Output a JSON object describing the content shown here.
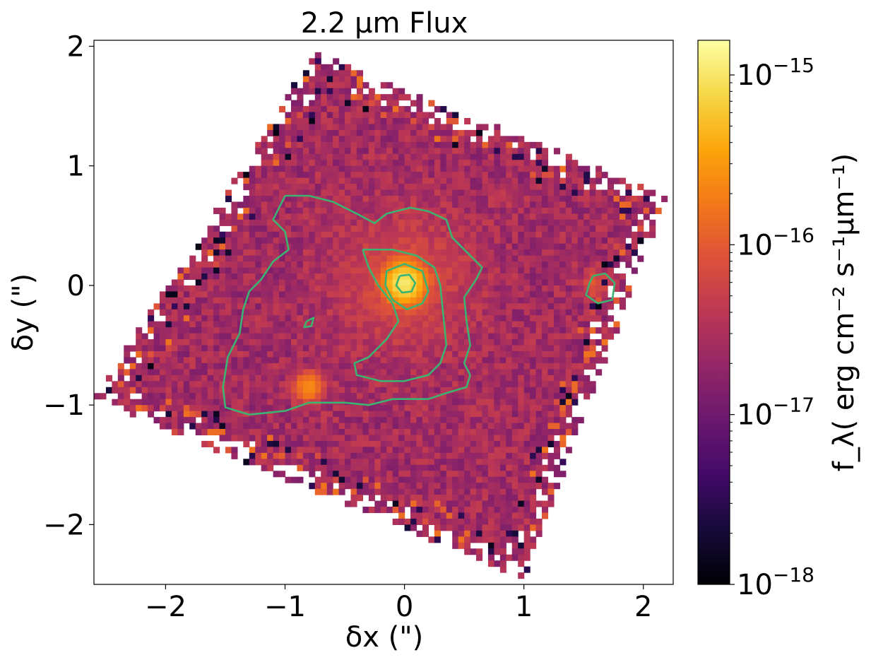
{
  "chart_data": {
    "type": "heatmap",
    "title": "2.2 μm Flux",
    "xlabel": "δx (\")",
    "ylabel": "δy (\")",
    "xlim": [
      -2.6,
      2.25
    ],
    "ylim": [
      -2.5,
      2.05
    ],
    "xticks": [
      {
        "value": -2,
        "label": "−2"
      },
      {
        "value": -1,
        "label": "−1"
      },
      {
        "value": 0,
        "label": "0"
      },
      {
        "value": 1,
        "label": "1"
      },
      {
        "value": 2,
        "label": "2"
      }
    ],
    "yticks": [
      {
        "value": 2,
        "label": "2"
      },
      {
        "value": 1,
        "label": "1"
      },
      {
        "value": 0,
        "label": "0"
      },
      {
        "value": -1,
        "label": "−1"
      },
      {
        "value": -2,
        "label": "−2"
      }
    ],
    "colorbar": {
      "label": "f_λ( erg cm⁻² s⁻¹μm⁻¹)",
      "scale": "log",
      "colormap": "inferno",
      "range": [
        1e-18,
        1.6e-15
      ],
      "ticks": [
        {
          "value": 1e-18,
          "base": "10",
          "exp": "−18"
        },
        {
          "value": 1e-17,
          "base": "10",
          "exp": "−17"
        },
        {
          "value": 1e-16,
          "base": "10",
          "exp": "−16"
        },
        {
          "value": 1e-15,
          "base": "10",
          "exp": "−15"
        }
      ]
    },
    "map": {
      "footprint_corners": [
        [
          -0.75,
          1.95
        ],
        [
          2.2,
          0.75
        ],
        [
          1.0,
          -2.45
        ],
        [
          -2.6,
          -0.95
        ]
      ],
      "background_level": 2.5e-17,
      "pixel_size_arcsec": 0.05,
      "sources": [
        {
          "name": "nucleus",
          "x": 0.0,
          "y": 0.02,
          "peak": 1e-15
        },
        {
          "name": "knot",
          "x": -0.8,
          "y": -0.85,
          "peak": 2.2e-16
        },
        {
          "name": "clump",
          "x": 1.6,
          "y": 0.0,
          "peak": 6e-17
        }
      ]
    },
    "contours": {
      "color": "#3cb371",
      "paths": [
        [
          [
            -1.0,
            0.75
          ],
          [
            -0.8,
            0.75
          ],
          [
            -0.6,
            0.7
          ],
          [
            -0.4,
            0.6
          ],
          [
            -0.25,
            0.52
          ],
          [
            -0.15,
            0.6
          ],
          [
            0.05,
            0.65
          ],
          [
            0.2,
            0.62
          ],
          [
            0.35,
            0.55
          ],
          [
            0.4,
            0.4
          ],
          [
            0.55,
            0.25
          ],
          [
            0.65,
            0.15
          ],
          [
            0.6,
            0.05
          ],
          [
            0.5,
            -0.1
          ],
          [
            0.52,
            -0.3
          ],
          [
            0.55,
            -0.5
          ],
          [
            0.5,
            -0.65
          ],
          [
            0.55,
            -0.75
          ],
          [
            0.52,
            -0.85
          ],
          [
            0.35,
            -0.9
          ],
          [
            0.2,
            -0.95
          ],
          [
            -0.1,
            -0.95
          ],
          [
            -0.3,
            -1.0
          ],
          [
            -0.5,
            -0.98
          ],
          [
            -0.8,
            -0.98
          ],
          [
            -1.0,
            -1.05
          ],
          [
            -1.3,
            -1.08
          ],
          [
            -1.5,
            -1.02
          ],
          [
            -1.52,
            -0.85
          ],
          [
            -1.48,
            -0.6
          ],
          [
            -1.38,
            -0.4
          ],
          [
            -1.35,
            -0.2
          ],
          [
            -1.3,
            -0.05
          ],
          [
            -1.2,
            0.05
          ],
          [
            -1.1,
            0.2
          ],
          [
            -0.97,
            0.3
          ],
          [
            -1.0,
            0.45
          ],
          [
            -1.1,
            0.55
          ],
          [
            -1.05,
            0.65
          ],
          [
            -1.0,
            0.75
          ]
        ],
        [
          [
            -0.35,
            0.3
          ],
          [
            -0.1,
            0.3
          ],
          [
            0.1,
            0.25
          ],
          [
            0.25,
            0.15
          ],
          [
            0.3,
            0.0
          ],
          [
            0.32,
            -0.2
          ],
          [
            0.35,
            -0.5
          ],
          [
            0.3,
            -0.65
          ],
          [
            0.2,
            -0.75
          ],
          [
            0.0,
            -0.8
          ],
          [
            -0.2,
            -0.8
          ],
          [
            -0.4,
            -0.75
          ],
          [
            -0.42,
            -0.65
          ],
          [
            -0.3,
            -0.6
          ],
          [
            -0.15,
            -0.45
          ],
          [
            -0.05,
            -0.3
          ],
          [
            -0.1,
            -0.15
          ],
          [
            -0.22,
            0.0
          ],
          [
            -0.3,
            0.15
          ],
          [
            -0.35,
            0.3
          ]
        ],
        [
          [
            -0.15,
            0.12
          ],
          [
            0.0,
            0.18
          ],
          [
            0.15,
            0.12
          ],
          [
            0.2,
            -0.05
          ],
          [
            0.15,
            -0.15
          ],
          [
            0.02,
            -0.2
          ],
          [
            -0.1,
            -0.12
          ],
          [
            -0.16,
            0.0
          ],
          [
            -0.15,
            0.12
          ]
        ],
        [
          [
            -0.04,
            0.08
          ],
          [
            0.04,
            0.09
          ],
          [
            0.09,
            0.02
          ],
          [
            0.06,
            -0.05
          ],
          [
            -0.02,
            -0.06
          ],
          [
            -0.07,
            0.0
          ],
          [
            -0.04,
            0.08
          ]
        ],
        [
          [
            1.58,
            0.08
          ],
          [
            1.68,
            0.1
          ],
          [
            1.76,
            0.02
          ],
          [
            1.74,
            -0.12
          ],
          [
            1.62,
            -0.15
          ],
          [
            1.52,
            -0.08
          ],
          [
            1.55,
            0.02
          ],
          [
            1.58,
            0.08
          ]
        ],
        [
          [
            -0.82,
            -0.3
          ],
          [
            -0.76,
            -0.27
          ],
          [
            -0.78,
            -0.34
          ],
          [
            -0.84,
            -0.35
          ],
          [
            -0.82,
            -0.3
          ]
        ]
      ]
    }
  }
}
